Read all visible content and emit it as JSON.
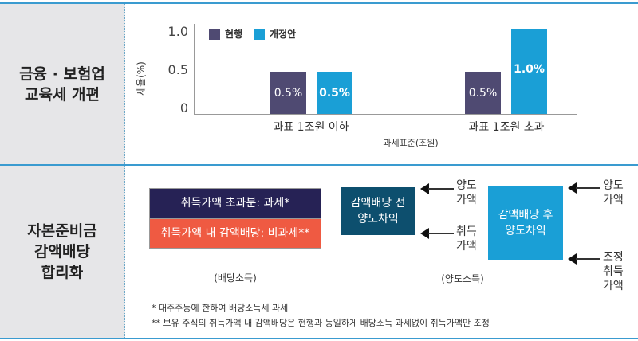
{
  "sections": [
    {
      "title": "금융 · 보험업\n교육세 개편"
    },
    {
      "title": "자본준비금\n감액배당\n합리화"
    }
  ],
  "colors": {
    "current": "#4f4a72",
    "proposal": "#1a9fd6",
    "taxable": "#262255",
    "nontaxable": "#ef5a42",
    "before_box": "#0d4f6e",
    "after_box": "#1a9fd6",
    "rule": "#3a9bd0",
    "side_bg": "#e6e6e8"
  },
  "chart_data": {
    "type": "bar",
    "categories": [
      "과표 1조원 이하",
      "과표 1조원 초과"
    ],
    "series": [
      {
        "name": "현행",
        "values": [
          0.5,
          0.5
        ],
        "labels": [
          "0.5%",
          "0.5%"
        ]
      },
      {
        "name": "개정안",
        "values": [
          0.5,
          1.0
        ],
        "labels": [
          "0.5%",
          "1.0%"
        ]
      }
    ],
    "xlabel": "과세표준(조원)",
    "ylabel": "세율(%)",
    "ylim": [
      0,
      1.0
    ],
    "yticks": [
      "0",
      "0.5",
      "1.0"
    ],
    "grid": false,
    "legend": "top-left"
  },
  "diagram": {
    "stack": {
      "top": "취득가액 초과분: 과세*",
      "bottom": "취득가액 내 감액배당: 비과세**",
      "caption": "(배당소득)"
    },
    "before": {
      "box": "감액배당 전\n양도차익",
      "inputs": [
        "양도\n가액",
        "취득\n가액"
      ]
    },
    "after": {
      "box": "감액배당 후\n양도차익",
      "inputs": [
        "양도\n가액",
        "조정\n취득\n가액"
      ]
    },
    "caption": "(양도소득)"
  },
  "footnotes": [
    "* 대주주등에 한하여 배당소득세 과세",
    "** 보유 주식의 취득가액 내 감액배당은 현행과 동일하게 배당소득 과세없이 취득가액만 조정"
  ]
}
